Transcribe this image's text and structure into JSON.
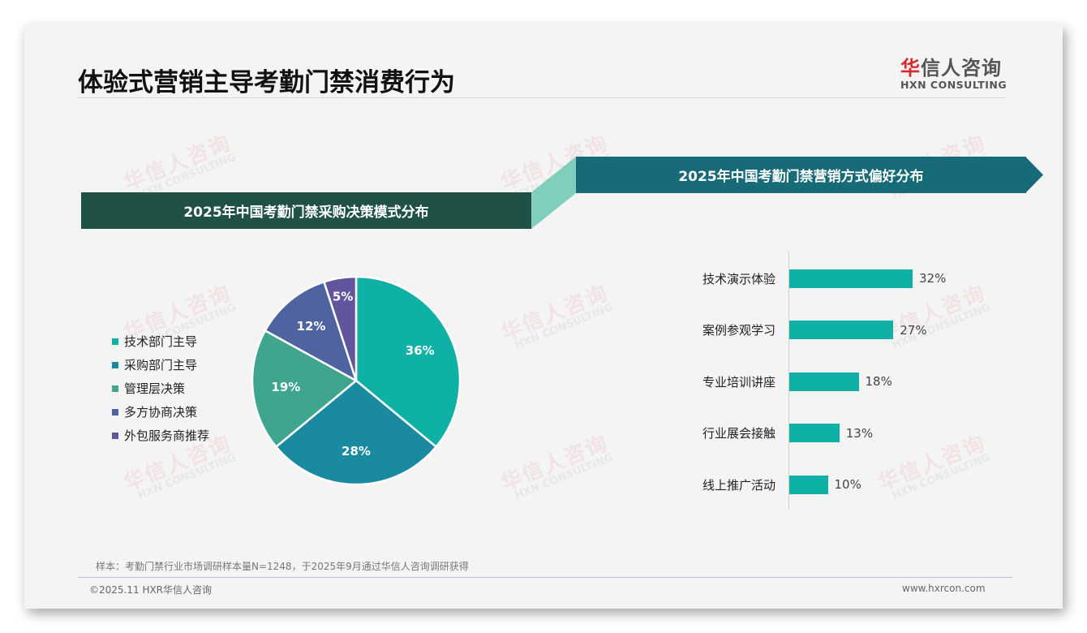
{
  "header": {
    "title": "体验式营销主导考勤门禁消费行为",
    "logo": {
      "cn_red": "华",
      "cn_rest": "信人咨询",
      "en": "HXN CONSULTING"
    }
  },
  "watermark": {
    "cn": "华信人咨询",
    "en": "HXN CONSULTING"
  },
  "left_panel": {
    "banner": "2025年中国考勤门禁采购决策模式分布"
  },
  "right_panel": {
    "banner": "2025年中国考勤门禁营销方式偏好分布"
  },
  "colors": {
    "banner_left": "#1f5147",
    "banner_right": "#176a78",
    "connector": "#7fcfbc",
    "bar": "#0fb0a6",
    "pie": [
      "#0fb0a6",
      "#1a8aa0",
      "#3fa58f",
      "#4f63a1",
      "#61559e"
    ]
  },
  "chart_data": [
    {
      "type": "pie",
      "title": "2025年中国考勤门禁采购决策模式分布",
      "categories": [
        "技术部门主导",
        "采购部门主导",
        "管理层决策",
        "多方协商决策",
        "外包服务商推荐"
      ],
      "values": [
        36,
        28,
        19,
        12,
        5
      ],
      "labels": [
        "36%",
        "28%",
        "19%",
        "12%",
        "5%"
      ],
      "legend_position": "left",
      "start_angle": "12 o'clock, clockwise"
    },
    {
      "type": "bar",
      "orientation": "horizontal",
      "title": "2025年中国考勤门禁营销方式偏好分布",
      "categories": [
        "技术演示体验",
        "案例参观学习",
        "专业培训讲座",
        "行业展会接触",
        "线上推广活动"
      ],
      "values": [
        32,
        27,
        18,
        13,
        10
      ],
      "labels": [
        "32%",
        "27%",
        "18%",
        "13%",
        "10%"
      ],
      "xlabel": "",
      "ylabel": "",
      "grid": false
    }
  ],
  "footer": {
    "note": "样本：考勤门禁行业市场调研样本量N=1248，于2025年9月通过华信人咨询调研获得",
    "copyright": "©2025.11 HXR华信人咨询",
    "website": "www.hxrcon.com"
  }
}
